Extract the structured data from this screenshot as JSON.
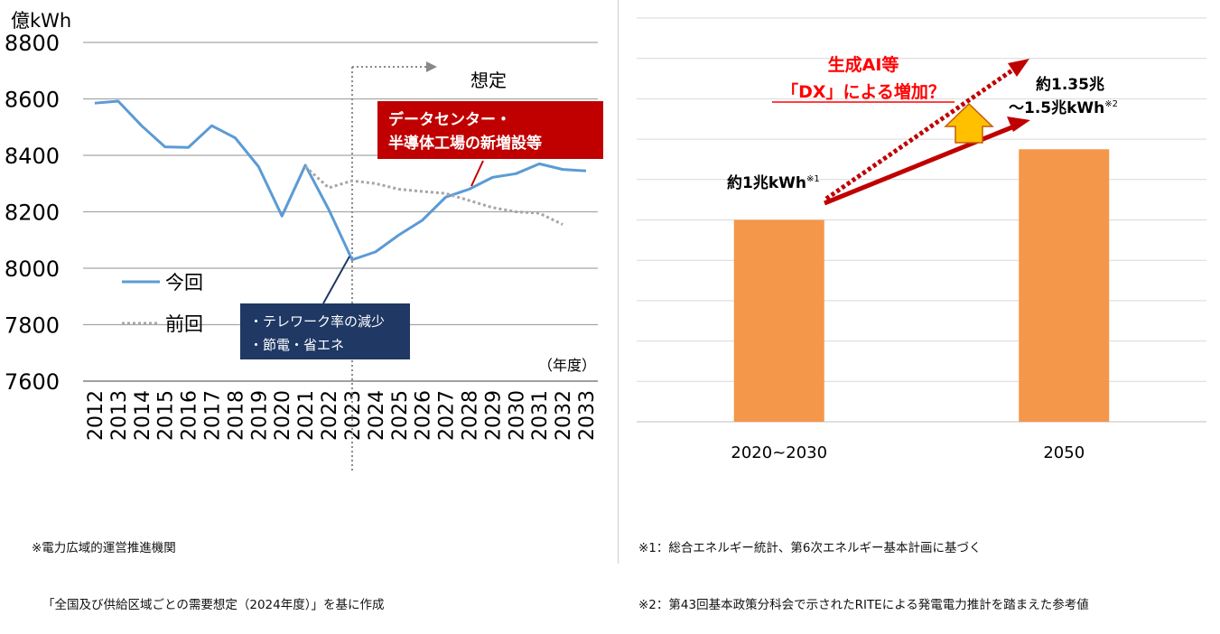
{
  "chart_data": [
    {
      "type": "line",
      "unit_label": "億kWh",
      "x_axis_caption": "（年度）",
      "ylim": [
        7600,
        8800
      ],
      "y_ticks": [
        7600,
        7800,
        8000,
        8200,
        8400,
        8600,
        8800
      ],
      "categories": [
        "2012",
        "2013",
        "2014",
        "2015",
        "2016",
        "2017",
        "2018",
        "2019",
        "2020",
        "2021",
        "2022",
        "2023",
        "2024",
        "2025",
        "2026",
        "2027",
        "2028",
        "2029",
        "2030",
        "2031",
        "2032",
        "2033"
      ],
      "grid": true,
      "series": [
        {
          "name": "今回",
          "style": "solid",
          "color": "#5b9bd5",
          "values": [
            8585,
            8592,
            8505,
            8430,
            8428,
            8505,
            8462,
            8360,
            8185,
            8365,
            8208,
            8030,
            8058,
            8118,
            8170,
            8252,
            8280,
            8322,
            8335,
            8370,
            8350,
            8345
          ]
        },
        {
          "name": "前回",
          "style": "dotted",
          "color": "#a6a6a6",
          "values": [
            null,
            null,
            null,
            null,
            null,
            null,
            null,
            null,
            null,
            8360,
            8285,
            8310,
            8300,
            8280,
            8272,
            8265,
            8240,
            8215,
            8200,
            8195,
            8155,
            null
          ]
        }
      ],
      "forecast_label": "想定",
      "forecast_start": "2023",
      "annotations": {
        "datacenter": [
          "データセンター・",
          "半導体工場の新増設等"
        ],
        "decline": [
          "・テレワーク率の減少",
          "・節電・省エネ"
        ]
      },
      "colors": {
        "datacenter_box": "#c00000",
        "decline_box": "#1f3864"
      }
    },
    {
      "type": "bar",
      "categories": [
        "2020~2030",
        "2050"
      ],
      "values": [
        1.0,
        1.35
      ],
      "value_units": "兆kWh",
      "ylim": [
        0,
        2.0
      ],
      "grid": true,
      "color": "#f4974a",
      "bar_labels": [
        {
          "lines": [
            "約1兆kWh"
          ],
          "mark": "※1"
        },
        {
          "lines": [
            "約1.35兆",
            "～1.5兆kWh"
          ],
          "mark": "※2"
        }
      ],
      "arrow_label": [
        "生成AI等",
        "「DX」による増加？"
      ],
      "colors": {
        "arrow": "#c00000",
        "up_arrow": "#ffc000"
      }
    }
  ],
  "notes_left": [
    "※電力広域的運営推進機関",
    "「全国及び供給区域ごとの需要想定（2024年度）」を基に作成"
  ],
  "notes_right": [
    "※1：総合エネルギー統計、第6次エネルギー基本計画に基づく",
    "※2：第43回基本政策分科会で示されたRITEによる発電電力推計を踏まえた参考値"
  ]
}
